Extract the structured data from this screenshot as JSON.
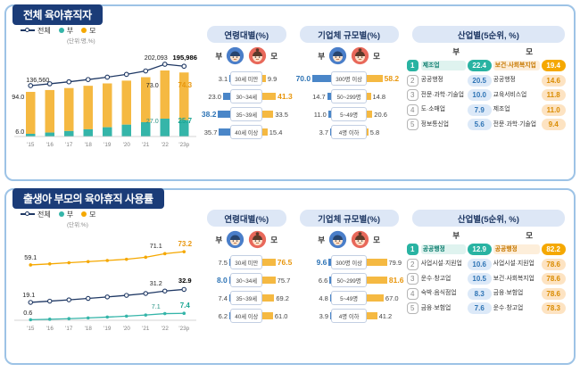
{
  "meta": {
    "top_title": "전체 육아휴직자",
    "bottom_title": "출생아 부모의 육아휴직 사용률",
    "legend_total": "전체",
    "legend_father": "부",
    "legend_mother": "모",
    "unit_top": "(단위:명,%)",
    "unit_bottom": "(단위:%)",
    "colors": {
      "navy": "#1f3864",
      "panel_border": "#9dc3e6",
      "father_bar_blue": "#4a86c8",
      "mother_bar_gold": "#f5b942",
      "father_teal": "#35b5a9",
      "mother_orange": "#f5a800",
      "father_highlight": "#2e74b5",
      "mother_highlight": "#e8960c"
    }
  },
  "chart_data": [
    {
      "id": "total-parental-leave-trend",
      "type": "bar",
      "title": "전체 육아휴직자",
      "x": [
        "'15",
        "'16",
        "'17",
        "'18",
        "'19",
        "'20",
        "'21",
        "'22",
        "'23p"
      ],
      "series": [
        {
          "name": "전체(명)",
          "values": [
            136560,
            142200,
            148300,
            155200,
            162500,
            171000,
            181500,
            202093,
            195986
          ]
        },
        {
          "name": "부 비중(%)",
          "values": [
            6.0,
            8.5,
            11.3,
            14.2,
            17.4,
            21.2,
            24.1,
            27.0,
            25.7
          ]
        },
        {
          "name": "모 비중(%)",
          "values": [
            94.0,
            91.5,
            88.7,
            85.8,
            82.6,
            78.8,
            75.9,
            73.0,
            74.3
          ]
        }
      ],
      "callouts": {
        "total_15": "136,560",
        "total_22": "202,093",
        "total_23": "195,986",
        "mother_15": "94.0",
        "mother_22": "73.0",
        "mother_23": "74.3",
        "father_15": "6.0",
        "father_22": "27.0",
        "father_23": "25.7"
      },
      "legend": [
        "전체",
        "부",
        "모"
      ],
      "unit": "(단위:명,%)"
    },
    {
      "id": "top-age-breakdown",
      "type": "bar",
      "title": "연령대별(%)",
      "categories": [
        "30세 미만",
        "30~34세",
        "35~39세",
        "40세 이상"
      ],
      "father": [
        "3.1",
        "23.0",
        "38.2",
        "35.7"
      ],
      "mother": [
        "9.9",
        "41.3",
        "33.5",
        "15.4"
      ]
    },
    {
      "id": "top-company-size-breakdown",
      "type": "bar",
      "title": "기업체 규모별(%)",
      "categories": [
        "300명 이상",
        "50~299명",
        "5~49명",
        "4명 이하"
      ],
      "father": [
        "70.0",
        "14.7",
        "11.0",
        "3.7"
      ],
      "mother": [
        "58.2",
        "14.8",
        "20.6",
        "5.8"
      ]
    },
    {
      "id": "top-industry-top5",
      "type": "table",
      "title": "산업별(5순위, %)",
      "rows": [
        {
          "rank": "1",
          "f_label": "제조업",
          "f_val": "22.4",
          "m_label": "보건·사회복지업",
          "m_val": "19.4"
        },
        {
          "rank": "2",
          "f_label": "공공행정",
          "f_val": "20.5",
          "m_label": "공공행정",
          "m_val": "14.6"
        },
        {
          "rank": "3",
          "f_label": "전문·과학·기술업",
          "f_val": "10.0",
          "m_label": "교육서비스업",
          "m_val": "11.8"
        },
        {
          "rank": "4",
          "f_label": "도·소매업",
          "f_val": "7.9",
          "m_label": "제조업",
          "m_val": "11.0"
        },
        {
          "rank": "5",
          "f_label": "정보통신업",
          "f_val": "5.6",
          "m_label": "전문·과학·기술업",
          "m_val": "9.4"
        }
      ]
    },
    {
      "id": "usage-rate-trend",
      "type": "line",
      "title": "출생아 부모의 육아휴직 사용률",
      "x": [
        "'15",
        "'16",
        "'17",
        "'18",
        "'19",
        "'20",
        "'21",
        "'22",
        "'23p"
      ],
      "ylim": [
        0,
        80
      ],
      "series": [
        {
          "name": "모",
          "values": [
            59.1,
            60.2,
            61.4,
            62.6,
            63.8,
            65.1,
            67.3,
            71.1,
            73.2
          ]
        },
        {
          "name": "전체",
          "values": [
            19.1,
            20.4,
            21.8,
            23.3,
            24.9,
            26.6,
            28.6,
            31.2,
            32.9
          ]
        },
        {
          "name": "부",
          "values": [
            0.6,
            1.1,
            1.7,
            2.5,
            3.4,
            4.4,
            5.6,
            7.1,
            7.4
          ]
        }
      ],
      "callouts": {
        "mother_15": "59.1",
        "mother_22": "71.1",
        "mother_23": "73.2",
        "total_15": "19.1",
        "total_22": "31.2",
        "total_23": "32.9",
        "father_15": "0.6",
        "father_22": "7.1",
        "father_23": "7.4"
      },
      "legend": [
        "전체",
        "부",
        "모"
      ],
      "unit": "(단위:%)"
    },
    {
      "id": "bottom-age-breakdown",
      "type": "bar",
      "title": "연령대별(%)",
      "categories": [
        "30세 미만",
        "30~34세",
        "35~39세",
        "40세 이상"
      ],
      "father": [
        "7.5",
        "8.0",
        "7.4",
        "6.2"
      ],
      "mother": [
        "76.5",
        "75.7",
        "69.2",
        "61.0"
      ]
    },
    {
      "id": "bottom-company-size-breakdown",
      "type": "bar",
      "title": "기업체 규모별(%)",
      "categories": [
        "300명 이상",
        "50~299명",
        "5~49명",
        "4명 이하"
      ],
      "father": [
        "9.6",
        "6.6",
        "4.8",
        "3.9"
      ],
      "mother": [
        "79.9",
        "81.6",
        "67.0",
        "41.2"
      ]
    },
    {
      "id": "bottom-industry-top5",
      "type": "table",
      "title": "산업별(5순위, %)",
      "rows": [
        {
          "rank": "1",
          "f_label": "공공행정",
          "f_val": "12.9",
          "m_label": "공공행정",
          "m_val": "82.2"
        },
        {
          "rank": "2",
          "f_label": "사업시설·지원업",
          "f_val": "10.6",
          "m_label": "사업시설·지원업",
          "m_val": "78.6"
        },
        {
          "rank": "3",
          "f_label": "운수·창고업",
          "f_val": "10.5",
          "m_label": "보건·사회복지업",
          "m_val": "78.6"
        },
        {
          "rank": "4",
          "f_label": "숙박·음식점업",
          "f_val": "8.3",
          "m_label": "금융·보험업",
          "m_val": "78.6"
        },
        {
          "rank": "5",
          "f_label": "금융·보험업",
          "f_val": "7.6",
          "m_label": "운수·창고업",
          "m_val": "78.3"
        }
      ]
    }
  ]
}
